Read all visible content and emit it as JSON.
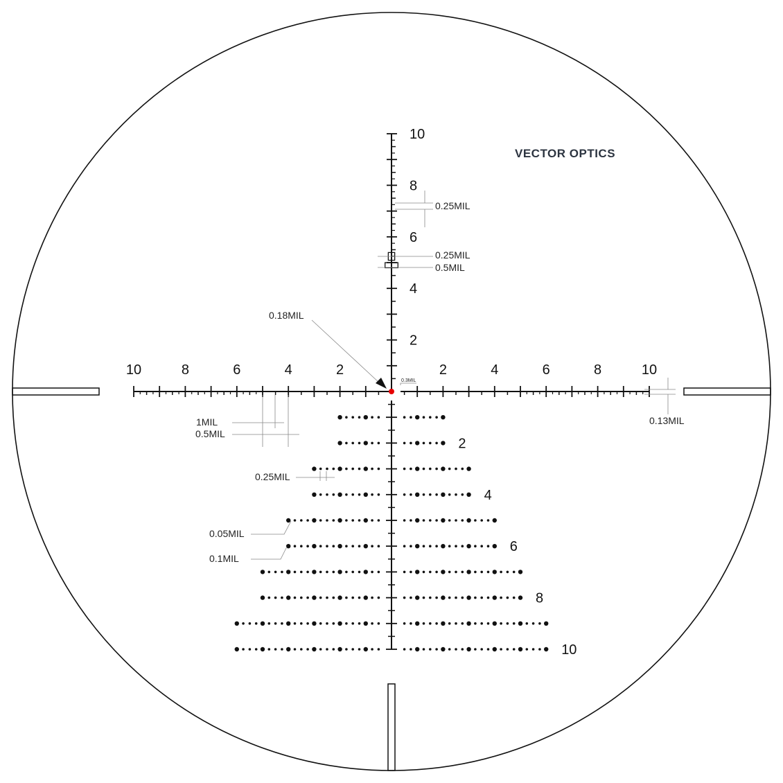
{
  "brand": {
    "logo_text": "VECTOR OPTICS",
    "logo_color": "#2c3440"
  },
  "reticle": {
    "unit": "MIL",
    "horizontal_range": 10,
    "vertical_range_up": 10,
    "vertical_range_down": 10,
    "center_dot_color": "#e60000",
    "line_color": "#111111",
    "horizontal_labels": [
      "2",
      "4",
      "6",
      "8",
      "10"
    ],
    "vertical_labels": [
      "2",
      "4",
      "6",
      "8",
      "10"
    ],
    "dot_rows": [
      {
        "row": 1,
        "extent": 2,
        "label": ""
      },
      {
        "row": 2,
        "extent": 2,
        "label": "2"
      },
      {
        "row": 3,
        "extent": 3,
        "label": ""
      },
      {
        "row": 4,
        "extent": 3,
        "label": "4"
      },
      {
        "row": 5,
        "extent": 4,
        "label": ""
      },
      {
        "row": 6,
        "extent": 4,
        "label": "6"
      },
      {
        "row": 7,
        "extent": 5,
        "label": ""
      },
      {
        "row": 8,
        "extent": 5,
        "label": "8"
      },
      {
        "row": 9,
        "extent": 6,
        "label": ""
      },
      {
        "row": 10,
        "extent": 6,
        "label": "10"
      }
    ]
  },
  "annotations": {
    "vertical_tick_spacing": "0.25MIL",
    "box_inner_width": "0.25MIL",
    "box_outer_width": "0.5MIL",
    "center_dot": "0.18MIL",
    "center_gap": "0.3MIL",
    "major_tick": "1MIL",
    "minor_tick": "0.5MIL",
    "line_thickness": "0.13MIL",
    "dot_spacing": "0.25MIL",
    "small_dot": "0.05MIL",
    "large_dot": "0.1MIL"
  }
}
